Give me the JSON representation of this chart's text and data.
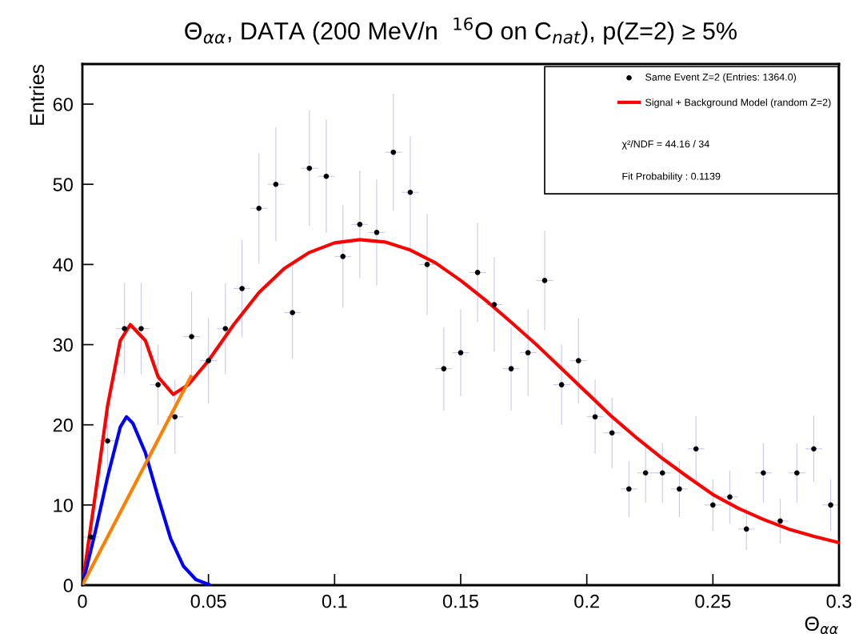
{
  "chart_data": {
    "type": "scatter",
    "title": "Θ$_{αα}$, DATA (200 MeV/n  $^{16}$O on C$_{nat}$), p(Z=2) ≥ 5%",
    "xlabel": "Θ$_{αα}$",
    "ylabel": "Entries",
    "xlim": [
      0,
      0.3
    ],
    "xticks": [
      0,
      0.05,
      0.1,
      0.15,
      0.2,
      0.25,
      0.3
    ],
    "ylim": [
      0,
      65
    ],
    "yticks": [
      0,
      10,
      20,
      30,
      40,
      50,
      60
    ],
    "grid": false,
    "legend": "top right",
    "annotations": [
      "χ²/NDF = 44.16 / 34",
      "Fit Probability : 0.1139"
    ],
    "series": [
      {
        "name": "Same Event Z=2 (Entries: 1364.0)",
        "marker": "circle",
        "color": "#000000",
        "x": [
          0.0033,
          0.01,
          0.0167,
          0.0233,
          0.03,
          0.0367,
          0.0433,
          0.05,
          0.0567,
          0.0633,
          0.07,
          0.0767,
          0.0833,
          0.09,
          0.0967,
          0.1033,
          0.11,
          0.1167,
          0.1233,
          0.13,
          0.1367,
          0.1433,
          0.15,
          0.1567,
          0.1633,
          0.17,
          0.1767,
          0.1833,
          0.19,
          0.1967,
          0.2033,
          0.21,
          0.2167,
          0.2233,
          0.23,
          0.2367,
          0.2433,
          0.25,
          0.2567,
          0.2633,
          0.27,
          0.2767,
          0.2833,
          0.29,
          0.2967
        ],
        "values": [
          6,
          18,
          32,
          32,
          25,
          21,
          31,
          28,
          32,
          37,
          47,
          50,
          34,
          52,
          51,
          41,
          45,
          44,
          54,
          49,
          40,
          27,
          29,
          39,
          35,
          27,
          29,
          38,
          25,
          28,
          21,
          19,
          12,
          14,
          14,
          12,
          17,
          10,
          11,
          7,
          14,
          8,
          14,
          17,
          10
        ],
        "errors": [
          2.4,
          4.2,
          5.7,
          5.7,
          5,
          4.6,
          5.6,
          5.3,
          5.7,
          6.1,
          6.9,
          7.1,
          5.8,
          7.2,
          7.1,
          6.4,
          6.7,
          6.6,
          7.3,
          7,
          6.3,
          5.2,
          5.4,
          6.2,
          5.9,
          5.2,
          5.4,
          6.2,
          5,
          5.3,
          4.6,
          4.4,
          3.5,
          3.7,
          3.7,
          3.5,
          4.1,
          3.2,
          3.3,
          2.6,
          3.7,
          2.8,
          3.7,
          4.1,
          3.2
        ],
        "xerrors": [
          0.0033,
          0.0033,
          0.0033,
          0.0033,
          0.0033,
          0.0033,
          0.0033,
          0.0033,
          0.0033,
          0.0033,
          0.0033,
          0.0033,
          0.0033,
          0.0033,
          0.0033,
          0.0033,
          0.0033,
          0.0033,
          0.0033,
          0.0033,
          0.0033,
          0.0033,
          0.0033,
          0.0033,
          0.0033,
          0.0033,
          0.0033,
          0.0033,
          0.0033,
          0.0033,
          0.0033,
          0.0033,
          0.0033,
          0.0033,
          0.0033,
          0.0033,
          0.0033,
          0.0033,
          0.0033,
          0.0033,
          0.0033,
          0.0033,
          0.0033,
          0.0033,
          0.0033
        ]
      },
      {
        "name": "Signal + Background Model (random Z=2)",
        "type": "line",
        "marker": "none",
        "color": "#ff0000",
        "x": [
          0,
          0.005,
          0.01,
          0.015,
          0.019,
          0.025,
          0.03,
          0.036,
          0.042,
          0.05,
          0.06,
          0.07,
          0.08,
          0.09,
          0.1,
          0.11,
          0.12,
          0.13,
          0.14,
          0.15,
          0.16,
          0.17,
          0.18,
          0.19,
          0.2,
          0.21,
          0.22,
          0.23,
          0.24,
          0.25,
          0.26,
          0.27,
          0.28,
          0.29,
          0.3
        ],
        "values": [
          0,
          11,
          22.4,
          30.5,
          32.5,
          30.5,
          26,
          23.8,
          25,
          28,
          32.5,
          36.5,
          39.5,
          41.5,
          42.7,
          43.1,
          42.8,
          41.8,
          40.2,
          38,
          35.5,
          32.8,
          30,
          27,
          24,
          21,
          18.3,
          15.8,
          13.5,
          11.3,
          9.6,
          8.2,
          7,
          6.1,
          5.3
        ]
      },
      {
        "type": "line",
        "marker": "none",
        "color": "#0000ff",
        "x": [
          0,
          0.005,
          0.01,
          0.015,
          0.0175,
          0.02,
          0.025,
          0.03,
          0.035,
          0.04,
          0.045,
          0.05
        ],
        "values": [
          0,
          6.5,
          13.5,
          19.7,
          21,
          20.2,
          16.5,
          11,
          5.8,
          2.4,
          0.7,
          0.1
        ]
      },
      {
        "type": "line",
        "marker": "none",
        "color": "#ff7f00",
        "x": [
          0,
          0.043
        ],
        "values": [
          0,
          26
        ]
      }
    ]
  }
}
